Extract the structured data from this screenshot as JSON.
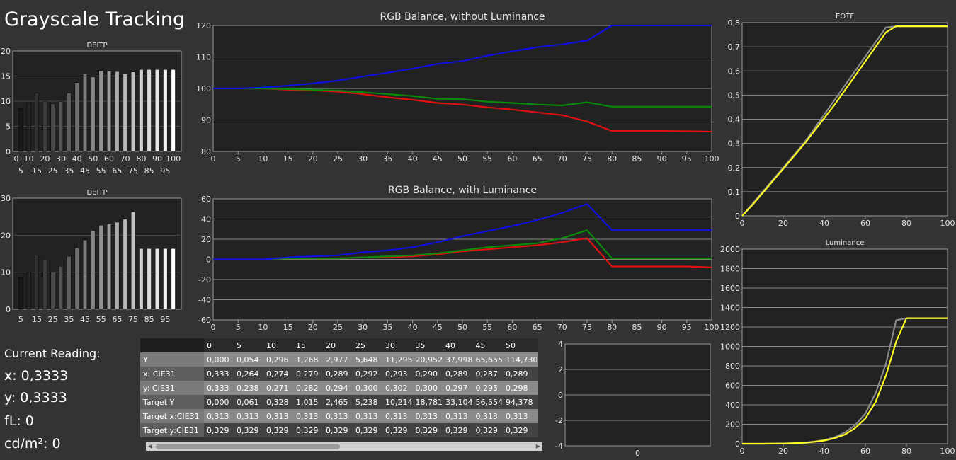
{
  "title": "Grayscale Tracking",
  "reading": {
    "label": "Current Reading:",
    "x": "x: 0,3333",
    "y": "y: 0,3333",
    "fl": "fL: 0",
    "cd": "cd/m²: 0"
  },
  "colors": {
    "red": "#e01010",
    "green": "#0a8a0a",
    "blue": "#1010e0",
    "gray": "#8a8a8a",
    "yellow": "#ffff22"
  },
  "chart_data": [
    {
      "id": "deitp1",
      "type": "bar",
      "title": "DEITP",
      "categories": [
        5,
        10,
        15,
        20,
        25,
        30,
        35,
        40,
        45,
        50,
        55,
        60,
        65,
        70,
        75,
        80,
        85,
        90,
        95,
        100
      ],
      "values": [
        8.5,
        9.7,
        11.6,
        9.9,
        9.5,
        9.9,
        11.6,
        13.7,
        15.4,
        14.8,
        16.1,
        16.0,
        15.9,
        15.4,
        15.8,
        16.3,
        16.3,
        16.3,
        16.3,
        16.3
      ],
      "ylim": [
        0,
        20
      ],
      "yticks": [
        "0",
        "5",
        "10",
        "15",
        "20"
      ],
      "xticks_top": [
        "0",
        "10",
        "20",
        "30",
        "40",
        "50",
        "60",
        "70",
        "80",
        "90",
        "100"
      ],
      "xticks_bottom": [
        "5",
        "15",
        "25",
        "35",
        "45",
        "55",
        "65",
        "75",
        "85",
        "95"
      ]
    },
    {
      "id": "deitp2",
      "type": "bar",
      "title": "DEITP",
      "categories": [
        5,
        10,
        15,
        20,
        25,
        30,
        35,
        40,
        45,
        50,
        55,
        60,
        65,
        70,
        75,
        80,
        85,
        90,
        95,
        100
      ],
      "values": [
        8.5,
        10.1,
        14.6,
        13.3,
        10.1,
        11.6,
        14.3,
        16.6,
        18.7,
        21.2,
        22.7,
        23.0,
        23.5,
        24.3,
        26.3,
        16.4,
        16.4,
        16.4,
        16.4,
        16.4
      ],
      "ylim": [
        0,
        30
      ],
      "yticks": [
        "0",
        "10",
        "20",
        "30"
      ],
      "xticks_bottom": [
        "5",
        "15",
        "25",
        "35",
        "45",
        "55",
        "65",
        "75",
        "85",
        "95"
      ]
    },
    {
      "id": "rgb1",
      "type": "line",
      "title": "RGB Balance, without Luminance",
      "x": [
        0,
        5,
        10,
        15,
        20,
        25,
        30,
        35,
        40,
        45,
        50,
        55,
        60,
        65,
        70,
        75,
        80,
        85,
        90,
        95,
        100
      ],
      "series": [
        {
          "color": "red",
          "values": [
            100,
            100,
            100,
            99.6,
            99.4,
            99.0,
            98.2,
            97.2,
            96.4,
            95.4,
            94.9,
            94.0,
            93.3,
            92.4,
            91.5,
            89.5,
            86.5,
            86.5,
            86.5,
            86.4,
            86.3
          ]
        },
        {
          "color": "green",
          "values": [
            100,
            100,
            100,
            99.8,
            99.6,
            99.3,
            98.8,
            98.2,
            97.6,
            96.7,
            96.6,
            95.8,
            95.4,
            94.9,
            94.6,
            95.6,
            94.2,
            94.2,
            94.2,
            94.2,
            94.2
          ]
        },
        {
          "color": "blue",
          "values": [
            100,
            100,
            100.3,
            100.9,
            101.6,
            102.5,
            103.8,
            105.0,
            106.3,
            107.8,
            108.7,
            110.4,
            111.8,
            113.1,
            114.0,
            115.2,
            120,
            120,
            120,
            120,
            120
          ]
        }
      ],
      "ylim": [
        80,
        120
      ],
      "yticks": [
        "80",
        "90",
        "100",
        "110",
        "120"
      ],
      "xticks": [
        "0",
        "5",
        "10",
        "15",
        "20",
        "25",
        "30",
        "35",
        "40",
        "45",
        "50",
        "55",
        "60",
        "65",
        "70",
        "75",
        "80",
        "85",
        "90",
        "95",
        "100"
      ]
    },
    {
      "id": "rgb2",
      "type": "line",
      "title": "RGB Balance, with Luminance",
      "x": [
        0,
        5,
        10,
        15,
        20,
        25,
        30,
        35,
        40,
        45,
        50,
        55,
        60,
        65,
        70,
        75,
        80,
        85,
        90,
        95,
        100
      ],
      "series": [
        {
          "color": "red",
          "values": [
            0,
            0,
            0,
            1,
            1,
            1,
            2,
            2,
            3,
            5,
            8,
            10,
            12,
            14,
            17,
            21,
            -7,
            -7,
            -7,
            -7,
            -8
          ]
        },
        {
          "color": "green",
          "values": [
            0,
            0,
            0,
            1,
            1,
            1,
            2,
            3,
            4,
            6,
            9,
            12,
            14,
            16,
            21,
            29,
            1,
            1,
            1,
            1,
            1
          ]
        },
        {
          "color": "blue",
          "values": [
            0,
            0,
            0,
            2,
            3,
            4,
            7,
            9,
            12,
            17,
            23,
            28,
            33,
            39,
            46,
            55,
            29,
            29,
            29,
            29,
            29
          ]
        }
      ],
      "ylim": [
        -60,
        60
      ],
      "yticks": [
        "-60",
        "-40",
        "-20",
        "0",
        "20",
        "40",
        "60"
      ],
      "xticks": [
        "0",
        "5",
        "10",
        "15",
        "20",
        "25",
        "30",
        "35",
        "40",
        "45",
        "50",
        "55",
        "60",
        "65",
        "70",
        "75",
        "80",
        "85",
        "90",
        "95",
        "100"
      ]
    },
    {
      "id": "small",
      "type": "line",
      "ylim": [
        -4,
        4
      ],
      "yticks": [
        "-4",
        "-2",
        "0",
        "2",
        "4"
      ],
      "xticks": [
        "0"
      ]
    },
    {
      "id": "eotf",
      "type": "line",
      "title": "EOTF",
      "x": [
        0,
        5,
        10,
        15,
        20,
        25,
        30,
        35,
        40,
        45,
        50,
        55,
        60,
        65,
        70,
        75,
        80,
        85,
        90,
        95,
        100
      ],
      "series": [
        {
          "color": "gray",
          "values": [
            0,
            0.05,
            0.1,
            0.15,
            0.2,
            0.25,
            0.3,
            0.36,
            0.42,
            0.48,
            0.54,
            0.6,
            0.66,
            0.72,
            0.78,
            0.785,
            0.785,
            0.785,
            0.785,
            0.785,
            0.785
          ]
        },
        {
          "color": "yellow",
          "values": [
            0,
            0.045,
            0.095,
            0.145,
            0.195,
            0.245,
            0.295,
            0.35,
            0.405,
            0.46,
            0.52,
            0.58,
            0.64,
            0.7,
            0.76,
            0.785,
            0.785,
            0.785,
            0.785,
            0.785,
            0.785
          ]
        }
      ],
      "ylim": [
        0,
        0.8
      ],
      "yticks": [
        "0",
        "0,1",
        "0,2",
        "0,3",
        "0,4",
        "0,5",
        "0,6",
        "0,7",
        "0,8"
      ],
      "xticks": [
        "0",
        "20",
        "40",
        "60",
        "80",
        "100"
      ]
    },
    {
      "id": "lum",
      "type": "line",
      "title": "Luminance",
      "x": [
        0,
        5,
        10,
        15,
        20,
        25,
        30,
        35,
        40,
        45,
        50,
        55,
        60,
        65,
        70,
        75,
        80,
        85,
        90,
        95,
        100
      ],
      "series": [
        {
          "color": "gray",
          "values": [
            0,
            0.05,
            0.3,
            1.3,
            3,
            5.6,
            11,
            21,
            38,
            66,
            115,
            190,
            310,
            520,
            820,
            1270,
            1290,
            1290,
            1290,
            1290,
            1290
          ]
        },
        {
          "color": "yellow",
          "values": [
            0,
            0.06,
            0.33,
            1.0,
            2.5,
            5.2,
            10,
            19,
            33,
            57,
            94,
            160,
            260,
            430,
            700,
            1050,
            1290,
            1290,
            1290,
            1290,
            1290
          ]
        }
      ],
      "ylim": [
        0,
        2000
      ],
      "yticks": [
        "0",
        "200",
        "400",
        "600",
        "800",
        "1000",
        "1200",
        "1400",
        "1600",
        "1800",
        "2000"
      ],
      "xticks": [
        "0",
        "20",
        "40",
        "60",
        "80",
        "100"
      ]
    }
  ],
  "table": {
    "columns": [
      "0",
      "5",
      "10",
      "15",
      "20",
      "25",
      "30",
      "35",
      "40",
      "45",
      "50"
    ],
    "rows": [
      {
        "label": "Y",
        "cells": [
          "0,000",
          "0,054",
          "0,296",
          "1,268",
          "2,977",
          "5,648",
          "11,295",
          "20,952",
          "37,998",
          "65,655",
          "114,730"
        ]
      },
      {
        "label": "x: CIE31",
        "cells": [
          "0,333",
          "0,264",
          "0,274",
          "0,279",
          "0,289",
          "0,292",
          "0,293",
          "0,290",
          "0,289",
          "0,287",
          "0,289"
        ]
      },
      {
        "label": "y: CIE31",
        "cells": [
          "0,333",
          "0,238",
          "0,271",
          "0,282",
          "0,294",
          "0,300",
          "0,302",
          "0,300",
          "0,297",
          "0,295",
          "0,298"
        ]
      },
      {
        "label": "Target Y",
        "cells": [
          "0,000",
          "0,061",
          "0,328",
          "1,015",
          "2,465",
          "5,238",
          "10,214",
          "18,781",
          "33,104",
          "56,554",
          "94,378"
        ]
      },
      {
        "label": "Target x:CIE31",
        "cells": [
          "0,313",
          "0,313",
          "0,313",
          "0,313",
          "0,313",
          "0,313",
          "0,313",
          "0,313",
          "0,313",
          "0,313",
          "0,313"
        ]
      },
      {
        "label": "Target y:CIE31",
        "cells": [
          "0,329",
          "0,329",
          "0,329",
          "0,329",
          "0,329",
          "0,329",
          "0,329",
          "0,329",
          "0,329",
          "0,329",
          "0,329"
        ]
      }
    ]
  }
}
